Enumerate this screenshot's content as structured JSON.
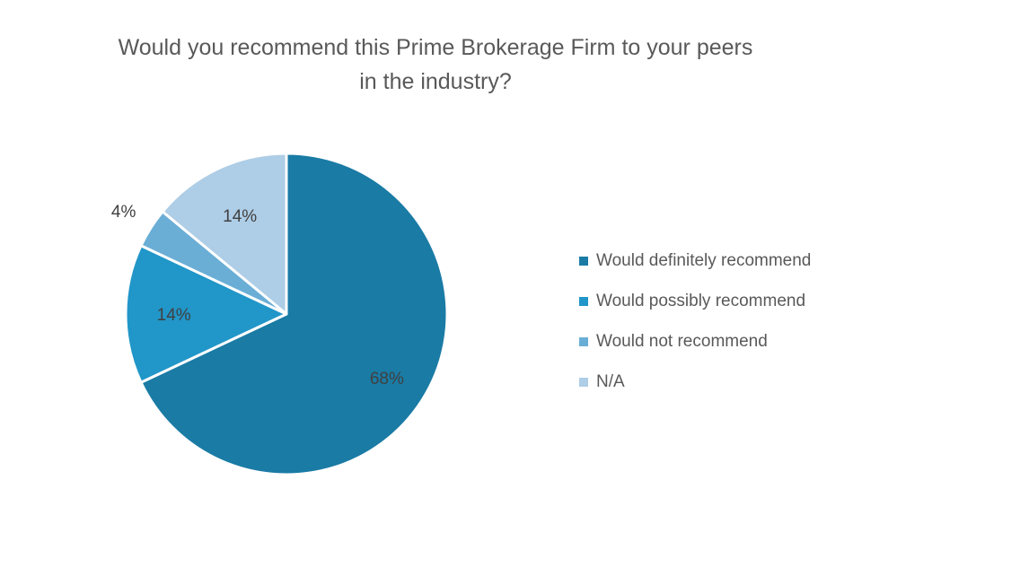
{
  "chart_data": {
    "type": "pie",
    "title_lines": [
      "Would you recommend this Prime Brokerage Firm to your peers",
      "in the industry?"
    ],
    "categories": [
      "Would definitely recommend",
      "Would possibly recommend",
      "Would not recommend",
      "N/A"
    ],
    "values": [
      68,
      14,
      4,
      14
    ],
    "data_labels": [
      "68%",
      "14%",
      "4%",
      "14%"
    ],
    "colors": [
      "#1a7ba5",
      "#2196c8",
      "#6aaed6",
      "#aecde6"
    ],
    "legend_position": "right"
  }
}
